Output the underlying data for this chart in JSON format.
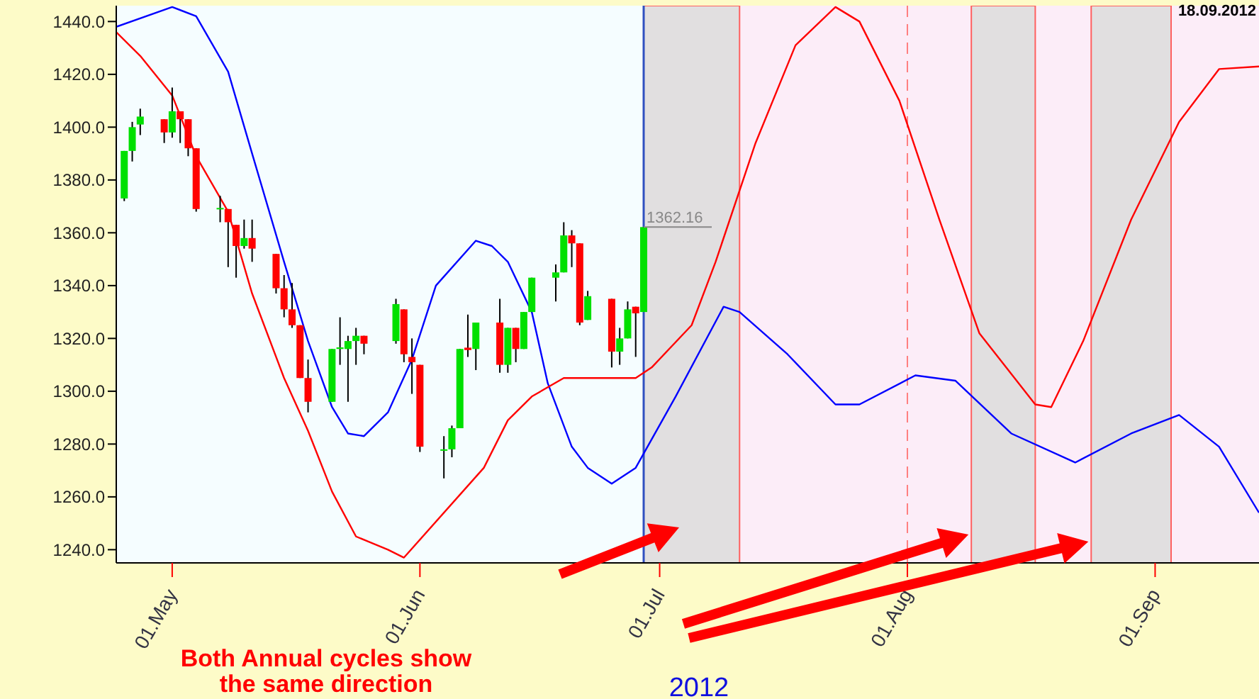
{
  "chart_data": {
    "type": "candlestick",
    "xlabel": "2012",
    "x": [
      "2012-04-25",
      "2012-04-26",
      "2012-04-27",
      "2012-04-30",
      "2012-05-01",
      "2012-05-02",
      "2012-05-03",
      "2012-05-04",
      "2012-05-07",
      "2012-05-08",
      "2012-05-09",
      "2012-05-10",
      "2012-05-11",
      "2012-05-14",
      "2012-05-15",
      "2012-05-16",
      "2012-05-17",
      "2012-05-18",
      "2012-05-21",
      "2012-05-22",
      "2012-05-23",
      "2012-05-24",
      "2012-05-25",
      "2012-05-29",
      "2012-05-30",
      "2012-05-31",
      "2012-06-01",
      "2012-06-04",
      "2012-06-05",
      "2012-06-06",
      "2012-06-07",
      "2012-06-08",
      "2012-06-11",
      "2012-06-12",
      "2012-06-13",
      "2012-06-14",
      "2012-06-15",
      "2012-06-18",
      "2012-06-19",
      "2012-06-20",
      "2012-06-21",
      "2012-06-22",
      "2012-06-25",
      "2012-06-26",
      "2012-06-27",
      "2012-06-28",
      "2012-06-29"
    ],
    "ohlc": [
      [
        1373,
        1391,
        1372,
        1391
      ],
      [
        1391,
        1402,
        1387,
        1400
      ],
      [
        1401,
        1407,
        1397,
        1404
      ],
      [
        1403,
        1403,
        1394,
        1398
      ],
      [
        1398,
        1415,
        1396,
        1406
      ],
      [
        1406,
        1406,
        1394,
        1403
      ],
      [
        1403,
        1403,
        1389,
        1392
      ],
      [
        1392,
        1392,
        1368,
        1369
      ],
      [
        1369,
        1374,
        1364,
        1369.4
      ],
      [
        1369,
        1369,
        1347,
        1364
      ],
      [
        1363,
        1363,
        1343,
        1355
      ],
      [
        1355,
        1365,
        1354,
        1358
      ],
      [
        1358,
        1365,
        1349,
        1354
      ],
      [
        1352,
        1352,
        1337,
        1339
      ],
      [
        1339,
        1344,
        1328,
        1331
      ],
      [
        1331,
        1341,
        1324,
        1325
      ],
      [
        1325,
        1325,
        1305,
        1305
      ],
      [
        1305,
        1312,
        1292,
        1296
      ],
      [
        1296,
        1316,
        1296,
        1316
      ],
      [
        1316,
        1328,
        1310,
        1316.6
      ],
      [
        1316,
        1321,
        1296,
        1319
      ],
      [
        1319,
        1324,
        1310,
        1321
      ],
      [
        1321,
        1321,
        1314,
        1318
      ],
      [
        1319,
        1335,
        1318,
        1333
      ],
      [
        1331,
        1331,
        1311,
        1314
      ],
      [
        1313,
        1320,
        1299,
        1311
      ],
      [
        1310,
        1310,
        1277,
        1279
      ],
      [
        1278,
        1283,
        1267,
        1278
      ],
      [
        1278,
        1287,
        1275,
        1286
      ],
      [
        1286,
        1316,
        1286,
        1316
      ],
      [
        1316.5,
        1329,
        1313,
        1315.6
      ],
      [
        1316,
        1326,
        1308,
        1326
      ],
      [
        1326,
        1335,
        1307,
        1310
      ],
      [
        1310,
        1324,
        1307,
        1324
      ],
      [
        1324,
        1324,
        1311,
        1316
      ],
      [
        1316,
        1330,
        1316,
        1330
      ],
      [
        1330,
        1343,
        1330,
        1343
      ],
      [
        1343,
        1348,
        1334,
        1345
      ],
      [
        1345,
        1364,
        1345,
        1359
      ],
      [
        1359,
        1361,
        1347,
        1356
      ],
      [
        1356,
        1356,
        1325,
        1326
      ],
      [
        1327,
        1338,
        1327,
        1336
      ],
      [
        1335,
        1335,
        1309,
        1315
      ],
      [
        1315,
        1324,
        1310,
        1320
      ],
      [
        1320,
        1334,
        1320,
        1331
      ],
      [
        1332,
        1332,
        1313,
        1329.5
      ],
      [
        1330,
        1362.16,
        1330,
        1362.16
      ]
    ],
    "series": [
      {
        "type": "line",
        "color": "#0000ff",
        "x": [
          "2012-04-24",
          "2012-05-01",
          "2012-05-04",
          "2012-05-08",
          "2012-05-11",
          "2012-05-15",
          "2012-05-18",
          "2012-05-21",
          "2012-05-23",
          "2012-05-25",
          "2012-05-28",
          "2012-05-31",
          "2012-06-03",
          "2012-06-08",
          "2012-06-10",
          "2012-06-12",
          "2012-06-15",
          "2012-06-17",
          "2012-06-20",
          "2012-06-22",
          "2012-06-25",
          "2012-06-28",
          "2012-07-03",
          "2012-07-09",
          "2012-07-11",
          "2012-07-17",
          "2012-07-23",
          "2012-07-26",
          "2012-08-02",
          "2012-08-07",
          "2012-08-14",
          "2012-08-22",
          "2012-08-29",
          "2012-09-04",
          "2012-09-09",
          "2012-09-14"
        ],
        "values": [
          1438,
          1445.5,
          1442,
          1421,
          1390,
          1349,
          1319,
          1294,
          1284,
          1283,
          1292,
          1312,
          1340,
          1357,
          1355,
          1349,
          1330,
          1303,
          1279,
          1271,
          1265,
          1271,
          1298,
          1332,
          1330,
          1314,
          1295,
          1295,
          1306,
          1304,
          1284,
          1273,
          1284,
          1291,
          1279,
          1254
        ]
      },
      {
        "type": "line",
        "color": "#ff0000",
        "x": [
          "2012-04-24",
          "2012-04-27",
          "2012-05-01",
          "2012-05-04",
          "2012-05-08",
          "2012-05-11",
          "2012-05-15",
          "2012-05-18",
          "2012-05-21",
          "2012-05-24",
          "2012-05-28",
          "2012-05-30",
          "2012-06-09",
          "2012-06-12",
          "2012-06-15",
          "2012-06-19",
          "2012-06-22",
          "2012-06-28",
          "2012-06-30",
          "2012-07-05",
          "2012-07-08",
          "2012-07-13",
          "2012-07-18",
          "2012-07-23",
          "2012-07-26",
          "2012-07-31",
          "2012-08-05",
          "2012-08-10",
          "2012-08-17",
          "2012-08-19",
          "2012-08-23",
          "2012-08-29",
          "2012-09-04",
          "2012-09-09",
          "2012-09-14"
        ],
        "values": [
          1436,
          1427,
          1412,
          1389,
          1368,
          1337,
          1305,
          1285,
          1262,
          1245,
          1240,
          1237,
          1271,
          1289,
          1298,
          1305,
          1305,
          1305,
          1309,
          1325,
          1349,
          1394,
          1431,
          1445.5,
          1440,
          1410,
          1365,
          1322,
          1295,
          1294,
          1319,
          1365,
          1402,
          1422,
          1423
        ]
      }
    ],
    "xlim": [
      "2012-04-24",
      "2012-09-14"
    ],
    "xticks": [
      {
        "value": "2012-05-01",
        "label": "01.May"
      },
      {
        "value": "2012-06-01",
        "label": "01.Jun"
      },
      {
        "value": "2012-07-01",
        "label": "01.Jul"
      },
      {
        "value": "2012-08-01",
        "label": "01.Aug"
      },
      {
        "value": "2012-09-01",
        "label": "01.Sep"
      }
    ],
    "ylim": [
      1235,
      1446
    ],
    "yticks": [
      {
        "value": 1240,
        "label": "1240.0"
      },
      {
        "value": 1260,
        "label": "1260.0"
      },
      {
        "value": 1280,
        "label": "1280.0"
      },
      {
        "value": 1300,
        "label": "1300.0"
      },
      {
        "value": 1320,
        "label": "1320.0"
      },
      {
        "value": 1340,
        "label": "1340.0"
      },
      {
        "value": 1360,
        "label": "1360.0"
      },
      {
        "value": 1380,
        "label": "1380.0"
      },
      {
        "value": 1400,
        "label": "1400.0"
      },
      {
        "value": 1420,
        "label": "1420.0"
      },
      {
        "value": 1440,
        "label": "1440.0"
      }
    ],
    "bands": [
      {
        "axis": "x",
        "from": "2012-06-29",
        "to": "2012-09-14",
        "color": "#fcedf8"
      },
      {
        "axis": "x",
        "from": "2012-06-29",
        "to": "2012-07-11",
        "color": "#dcdcdc"
      },
      {
        "axis": "x",
        "from": "2012-08-09",
        "to": "2012-08-17",
        "color": "#dcdcdc"
      },
      {
        "axis": "x",
        "from": "2012-08-24",
        "to": "2012-09-03",
        "color": "#dcdcdc"
      }
    ],
    "ref_lines": [
      {
        "axis": "x",
        "value": "2012-06-29",
        "color": "#3050c0",
        "line_style": "solid"
      },
      {
        "axis": "x",
        "value": "2012-08-01",
        "color": "#ff8080",
        "line_style": "dashed"
      }
    ],
    "annotations": [
      {
        "text": "1362.16",
        "x": "2012-06-29",
        "y": 1362.16
      },
      "18.09.2012",
      "Both Annual cycles show\nthe same direction"
    ]
  }
}
